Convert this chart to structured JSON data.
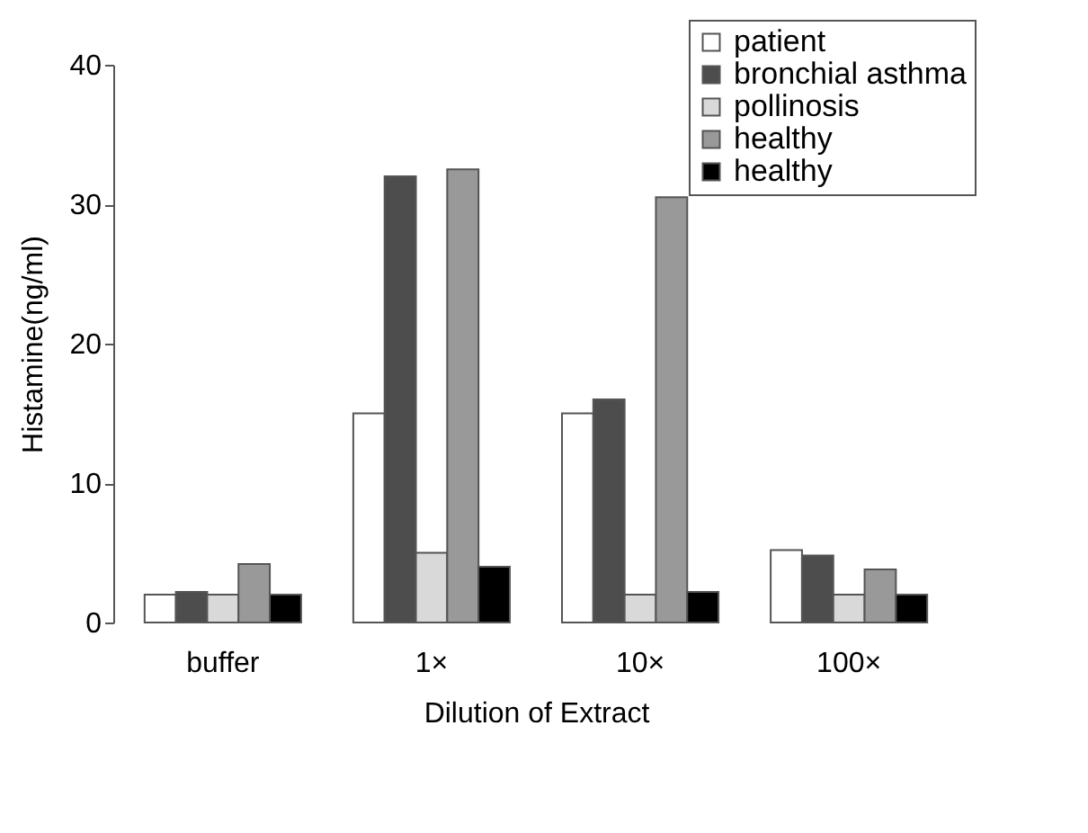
{
  "chart_data": {
    "type": "bar",
    "xlabel": "Dilution of Extract",
    "ylabel": "Histamine(ng/ml)",
    "categories": [
      "buffer",
      "1×",
      "10×",
      "100×"
    ],
    "series": [
      {
        "name": "patient",
        "color": "#ffffff",
        "values": [
          2,
          15,
          15,
          5.2
        ]
      },
      {
        "name": "bronchial asthma",
        "color": "#4d4d4d",
        "values": [
          2.2,
          32,
          16,
          4.8
        ]
      },
      {
        "name": "pollinosis",
        "color": "#d9d9d9",
        "values": [
          2,
          5,
          2,
          2
        ]
      },
      {
        "name": "healthy",
        "color": "#999999",
        "values": [
          4.2,
          32.5,
          30.5,
          3.8
        ]
      },
      {
        "name": "healthy",
        "color": "#000000",
        "values": [
          2,
          4,
          2.2,
          2
        ]
      }
    ],
    "ylim": [
      0,
      40
    ],
    "yticks": [
      0,
      10,
      20,
      30,
      40
    ],
    "grid": false,
    "legend": "top right"
  }
}
